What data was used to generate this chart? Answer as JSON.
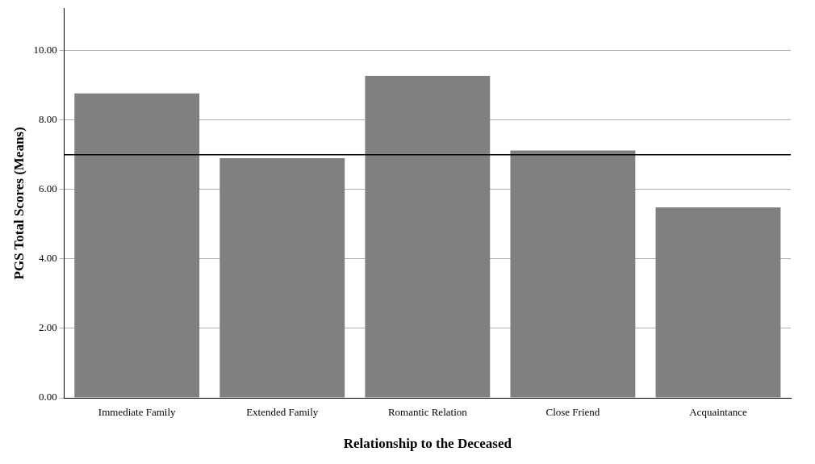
{
  "chart_data": {
    "type": "bar",
    "xlabel": "Relationship to the Deceased",
    "ylabel": "PGS Total Scores (Means)",
    "categories": [
      "Immediate Family",
      "Extended Family",
      "Romantic Relation",
      "Close Friend",
      "Acquaintance"
    ],
    "values": [
      8.76,
      6.9,
      9.27,
      7.12,
      5.48
    ],
    "color": "#808080",
    "ylim": [
      0,
      11.2
    ],
    "yticks": [
      {
        "value": 0,
        "label": "0.00"
      },
      {
        "value": 2,
        "label": "2.00"
      },
      {
        "value": 4,
        "label": "4.00"
      },
      {
        "value": 6,
        "label": "6.00"
      },
      {
        "value": 8,
        "label": "8.00"
      },
      {
        "value": 10,
        "label": "10.00"
      }
    ],
    "ref_lines": [
      {
        "axis": "y",
        "value": 7,
        "color": "#000000"
      }
    ],
    "grid": "y",
    "legend": false
  }
}
